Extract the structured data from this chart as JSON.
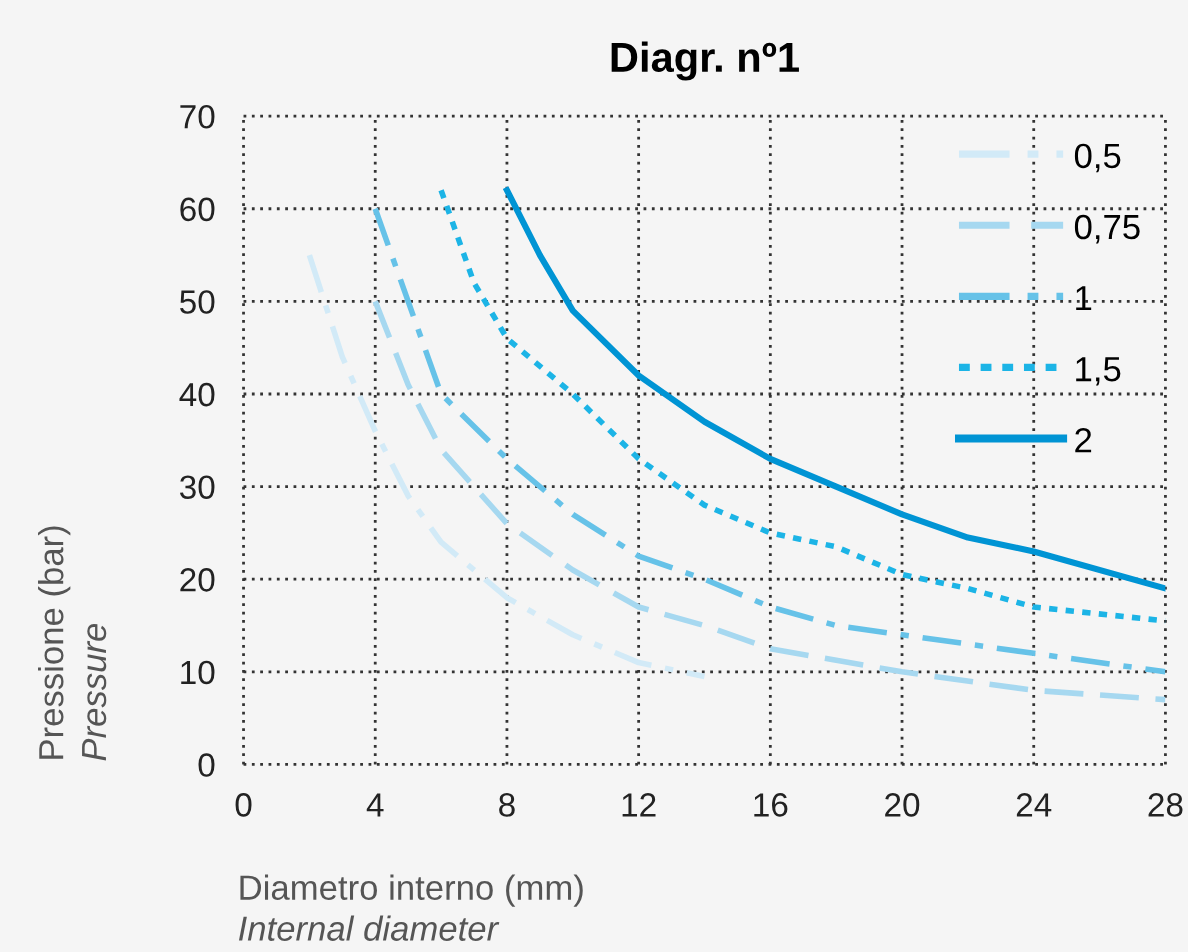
{
  "chart_data": {
    "type": "line",
    "title": "Diagr. nº1",
    "xlabel": [
      "Diametro interno (mm)",
      "Internal diameter"
    ],
    "ylabel": [
      "Pressione (bar)",
      "Pressure"
    ],
    "xlim": [
      0,
      28
    ],
    "xticks": [
      0,
      4,
      8,
      12,
      16,
      20,
      24,
      28
    ],
    "ylim": [
      0,
      70
    ],
    "yticks": [
      0,
      10,
      20,
      30,
      40,
      50,
      60,
      70
    ],
    "grid": true,
    "legend": "top right",
    "marker": "none",
    "series": [
      {
        "name": "0,5",
        "color": "#d2eaf7",
        "line_style": "dashdot",
        "x": [
          2,
          3,
          4,
          5,
          6,
          8,
          10,
          12,
          14
        ],
        "values": [
          55,
          44,
          36,
          29,
          24,
          18,
          14,
          11,
          9.5
        ]
      },
      {
        "name": "0,75",
        "color": "#a6d8f0",
        "line_style": "dashed",
        "x": [
          4,
          5,
          6,
          8,
          10,
          12,
          14,
          16,
          20,
          24,
          28
        ],
        "values": [
          50,
          41,
          34,
          26,
          21,
          17,
          15,
          12.5,
          10,
          8,
          7
        ]
      },
      {
        "name": "1",
        "color": "#66c2e8",
        "line_style": "dashdot",
        "x": [
          4,
          5,
          6,
          8,
          10,
          12,
          14,
          16,
          18,
          20,
          24,
          28
        ],
        "values": [
          60,
          50,
          40,
          33,
          27,
          22.5,
          20,
          17,
          15,
          14,
          12,
          10
        ]
      },
      {
        "name": "1,5",
        "color": "#1cb4e6",
        "line_style": "dotted",
        "x": [
          6,
          7,
          8,
          10,
          12,
          14,
          16,
          18,
          20,
          22,
          24,
          28
        ],
        "values": [
          62,
          52,
          46,
          40,
          33,
          28,
          25,
          23.5,
          20.5,
          19,
          17,
          15.5
        ]
      },
      {
        "name": "2",
        "color": "#0094d4",
        "line_style": "solid",
        "x": [
          8,
          9,
          10,
          12,
          14,
          16,
          18,
          20,
          22,
          24,
          28
        ],
        "values": [
          62,
          55,
          49,
          42,
          37,
          33,
          30,
          27,
          24.5,
          23,
          19
        ]
      }
    ]
  }
}
